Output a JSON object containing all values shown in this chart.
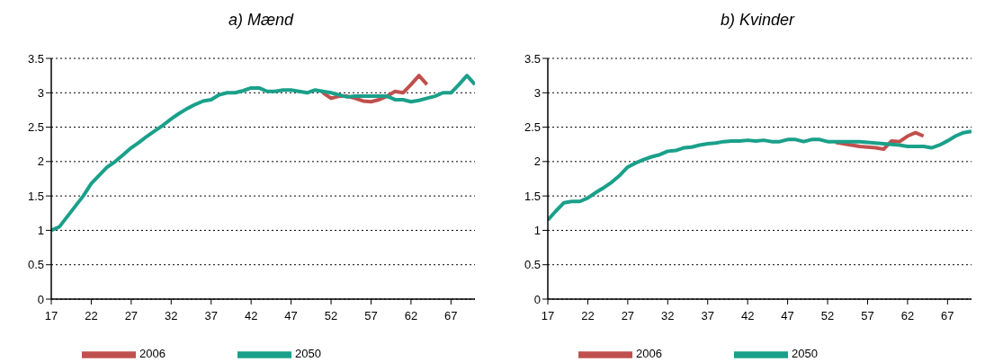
{
  "chart_data": [
    {
      "type": "line",
      "title": "a) Mænd",
      "x": [
        17,
        18,
        19,
        20,
        21,
        22,
        23,
        24,
        25,
        26,
        27,
        28,
        29,
        30,
        31,
        32,
        33,
        34,
        35,
        36,
        37,
        38,
        39,
        40,
        41,
        42,
        43,
        44,
        45,
        46,
        47,
        48,
        49,
        50,
        51,
        52,
        53,
        54,
        55,
        56,
        57,
        58,
        59,
        60,
        61,
        62,
        63,
        64,
        65,
        66,
        67,
        68,
        69,
        70
      ],
      "xlim": [
        17,
        70
      ],
      "xticks": [
        17,
        22,
        27,
        32,
        37,
        42,
        47,
        52,
        57,
        62,
        67
      ],
      "ylim": [
        0,
        3.5
      ],
      "yticks": [
        0,
        0.5,
        1,
        1.5,
        2,
        2.5,
        3,
        3.5
      ],
      "grid": "y",
      "legend": "bottom",
      "series": [
        {
          "name": "2006",
          "color": "#c0504d",
          "values": [
            null,
            null,
            null,
            null,
            null,
            null,
            null,
            null,
            null,
            null,
            null,
            null,
            null,
            null,
            null,
            null,
            null,
            null,
            null,
            null,
            null,
            null,
            null,
            null,
            null,
            null,
            null,
            null,
            null,
            null,
            null,
            null,
            null,
            null,
            3.0,
            2.92,
            2.95,
            2.95,
            2.92,
            2.88,
            2.87,
            2.9,
            2.95,
            3.02,
            3.0,
            3.12,
            3.25,
            3.12,
            null,
            null,
            null,
            null,
            null,
            null
          ]
        },
        {
          "name": "2050",
          "color": "#1aa08a",
          "values": [
            1.0,
            1.05,
            1.2,
            1.35,
            1.5,
            1.68,
            1.8,
            1.92,
            2.0,
            2.1,
            2.2,
            2.28,
            2.37,
            2.45,
            2.53,
            2.62,
            2.7,
            2.77,
            2.83,
            2.88,
            2.9,
            2.97,
            3.0,
            3.0,
            3.03,
            3.07,
            3.07,
            3.02,
            3.02,
            3.04,
            3.04,
            3.02,
            3.0,
            3.04,
            3.02,
            3.0,
            2.97,
            2.94,
            2.95,
            2.95,
            2.95,
            2.95,
            2.95,
            2.9,
            2.9,
            2.87,
            2.89,
            2.92,
            2.95,
            3.0,
            3.0,
            3.12,
            3.25,
            3.12
          ]
        }
      ]
    },
    {
      "type": "line",
      "title": "b) Kvinder",
      "x": [
        17,
        18,
        19,
        20,
        21,
        22,
        23,
        24,
        25,
        26,
        27,
        28,
        29,
        30,
        31,
        32,
        33,
        34,
        35,
        36,
        37,
        38,
        39,
        40,
        41,
        42,
        43,
        44,
        45,
        46,
        47,
        48,
        49,
        50,
        51,
        52,
        53,
        54,
        55,
        56,
        57,
        58,
        59,
        60,
        61,
        62,
        63,
        64,
        65,
        66,
        67,
        68,
        69,
        70
      ],
      "xlim": [
        17,
        70
      ],
      "xticks": [
        17,
        22,
        27,
        32,
        37,
        42,
        47,
        52,
        57,
        62,
        67
      ],
      "ylim": [
        0,
        3.5
      ],
      "yticks": [
        0,
        0.5,
        1,
        1.5,
        2,
        2.5,
        3,
        3.5
      ],
      "grid": "y",
      "legend": "bottom",
      "series": [
        {
          "name": "2006",
          "color": "#c0504d",
          "values": [
            null,
            null,
            null,
            null,
            null,
            null,
            null,
            null,
            null,
            null,
            null,
            null,
            null,
            null,
            null,
            null,
            null,
            null,
            null,
            null,
            null,
            null,
            null,
            null,
            null,
            null,
            null,
            null,
            null,
            null,
            null,
            null,
            null,
            null,
            null,
            null,
            2.28,
            2.26,
            2.24,
            2.22,
            2.21,
            2.2,
            2.18,
            2.3,
            2.29,
            2.37,
            2.42,
            2.37,
            null,
            null,
            null,
            null,
            null,
            null
          ]
        },
        {
          "name": "2050",
          "color": "#1aa08a",
          "values": [
            1.15,
            1.28,
            1.4,
            1.42,
            1.42,
            1.47,
            1.55,
            1.62,
            1.7,
            1.8,
            1.92,
            1.98,
            2.03,
            2.07,
            2.1,
            2.15,
            2.16,
            2.2,
            2.21,
            2.24,
            2.26,
            2.27,
            2.29,
            2.3,
            2.3,
            2.31,
            2.3,
            2.31,
            2.29,
            2.29,
            2.32,
            2.32,
            2.29,
            2.32,
            2.32,
            2.29,
            2.29,
            2.29,
            2.29,
            2.29,
            2.28,
            2.27,
            2.26,
            2.25,
            2.24,
            2.22,
            2.22,
            2.22,
            2.2,
            2.24,
            2.3,
            2.37,
            2.42,
            2.44
          ]
        }
      ]
    }
  ]
}
